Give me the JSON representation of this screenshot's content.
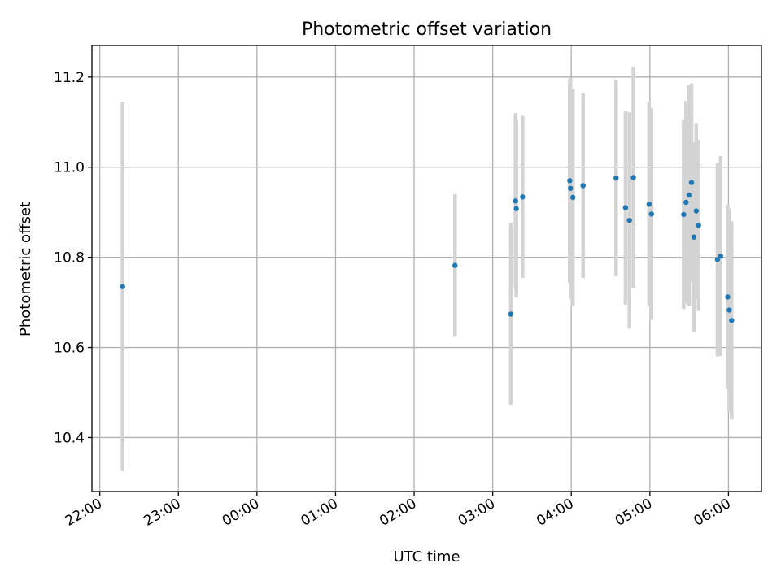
{
  "chart_data": {
    "type": "scatter",
    "title": "Photometric offset variation",
    "xlabel": "UTC time",
    "ylabel": "Photometric offset",
    "x_unit": "hours since 22:00",
    "xlim": [
      -0.1,
      8.42
    ],
    "ylim": [
      10.28,
      11.27
    ],
    "grid": true,
    "x_ticks": [
      {
        "value": 0,
        "label": "22:00"
      },
      {
        "value": 1,
        "label": "23:00"
      },
      {
        "value": 2,
        "label": "00:00"
      },
      {
        "value": 3,
        "label": "01:00"
      },
      {
        "value": 4,
        "label": "02:00"
      },
      {
        "value": 5,
        "label": "03:00"
      },
      {
        "value": 6,
        "label": "04:00"
      },
      {
        "value": 7,
        "label": "05:00"
      },
      {
        "value": 8,
        "label": "06:00"
      }
    ],
    "y_ticks": [
      {
        "value": 10.4,
        "label": "10.4"
      },
      {
        "value": 10.6,
        "label": "10.6"
      },
      {
        "value": 10.8,
        "label": "10.8"
      },
      {
        "value": 11.0,
        "label": "11.0"
      },
      {
        "value": 11.2,
        "label": "11.2"
      }
    ],
    "colors": {
      "marker": "#1f77b4",
      "errorbar": "#d3d3d3",
      "grid": "#b0b0b0"
    },
    "points": [
      {
        "x": 0.29,
        "y": 10.735,
        "err": 0.41
      },
      {
        "x": 4.52,
        "y": 10.782,
        "err": 0.158
      },
      {
        "x": 5.23,
        "y": 10.674,
        "err": 0.202
      },
      {
        "x": 5.29,
        "y": 10.925,
        "err": 0.195
      },
      {
        "x": 5.3,
        "y": 10.908,
        "err": 0.197
      },
      {
        "x": 5.38,
        "y": 10.934,
        "err": 0.18
      },
      {
        "x": 5.98,
        "y": 10.97,
        "err": 0.225
      },
      {
        "x": 5.99,
        "y": 10.953,
        "err": 0.245
      },
      {
        "x": 6.02,
        "y": 10.933,
        "err": 0.24
      },
      {
        "x": 6.15,
        "y": 10.959,
        "err": 0.205
      },
      {
        "x": 6.57,
        "y": 10.976,
        "err": 0.218
      },
      {
        "x": 6.69,
        "y": 10.91,
        "err": 0.215
      },
      {
        "x": 6.74,
        "y": 10.882,
        "err": 0.24
      },
      {
        "x": 6.79,
        "y": 10.977,
        "err": 0.245
      },
      {
        "x": 6.99,
        "y": 10.918,
        "err": 0.227
      },
      {
        "x": 7.02,
        "y": 10.896,
        "err": 0.235
      },
      {
        "x": 7.43,
        "y": 10.895,
        "err": 0.21
      },
      {
        "x": 7.46,
        "y": 10.922,
        "err": 0.225
      },
      {
        "x": 7.5,
        "y": 10.938,
        "err": 0.245
      },
      {
        "x": 7.53,
        "y": 10.966,
        "err": 0.22
      },
      {
        "x": 7.56,
        "y": 10.845,
        "err": 0.21
      },
      {
        "x": 7.59,
        "y": 10.903,
        "err": 0.195
      },
      {
        "x": 7.62,
        "y": 10.871,
        "err": 0.19
      },
      {
        "x": 7.86,
        "y": 10.795,
        "err": 0.215
      },
      {
        "x": 7.9,
        "y": 10.803,
        "err": 0.222
      },
      {
        "x": 7.99,
        "y": 10.712,
        "err": 0.205
      },
      {
        "x": 8.01,
        "y": 10.683,
        "err": 0.225
      },
      {
        "x": 8.04,
        "y": 10.66,
        "err": 0.22
      }
    ]
  }
}
